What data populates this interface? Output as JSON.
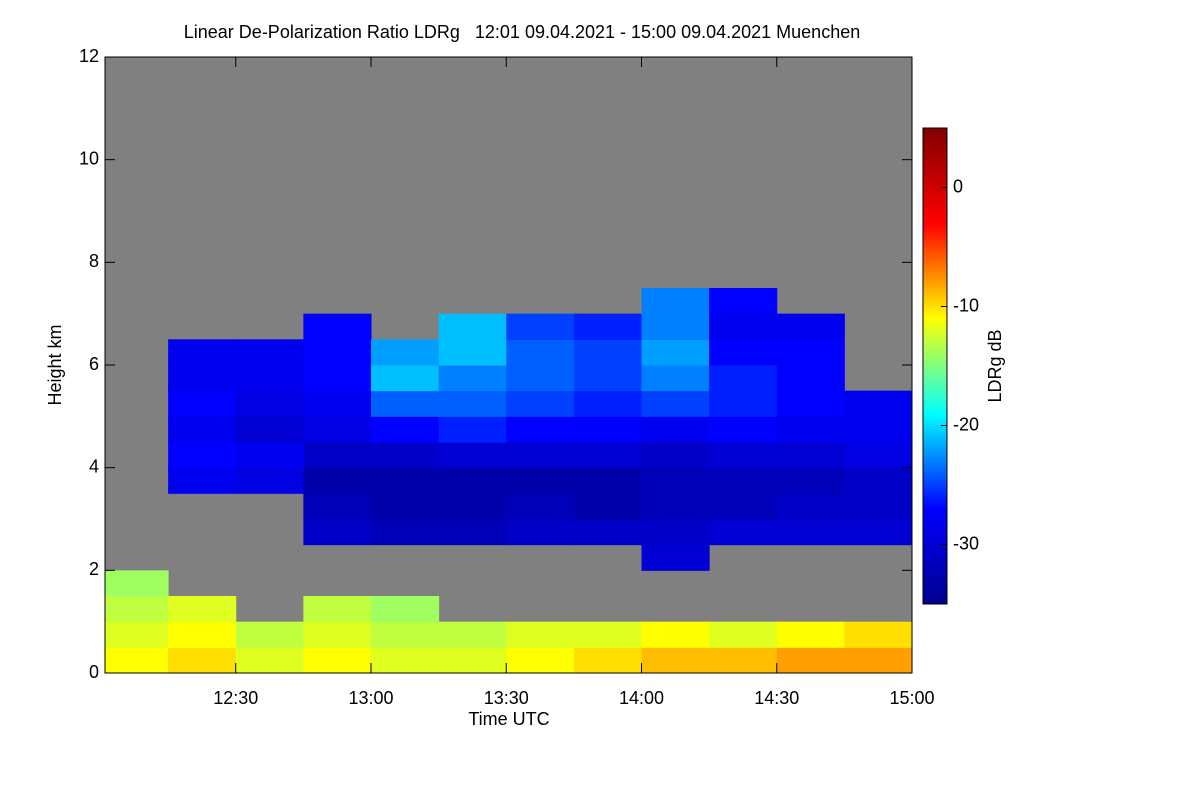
{
  "chart_data": {
    "type": "heatmap",
    "title": "Linear De-Polarization Ratio LDRg   12:01 09.04.2021 - 15:00 09.04.2021 Muenchen",
    "x_label": "Time UTC",
    "y_label": "Height km",
    "colorbar_label": "LDRg dB",
    "xlim": [
      721,
      900
    ],
    "xticks": [
      {
        "value": 750,
        "label": "12:30"
      },
      {
        "value": 780,
        "label": "13:00"
      },
      {
        "value": 810,
        "label": "13:30"
      },
      {
        "value": 840,
        "label": "14:00"
      },
      {
        "value": 870,
        "label": "14:30"
      },
      {
        "value": 900,
        "label": "15:00"
      }
    ],
    "ylim": [
      0,
      12
    ],
    "yticks": [
      0,
      2,
      4,
      6,
      8,
      10,
      12
    ],
    "zlim": [
      -35,
      5
    ],
    "zticks": [
      0,
      -10,
      -20,
      -30
    ],
    "colormap": [
      "#00008f",
      "#0000ff",
      "#00ffff",
      "#ffff00",
      "#ff0000",
      "#800000"
    ],
    "background": "#808080",
    "x_bins": [
      721,
      735,
      750,
      765,
      780,
      795,
      810,
      825,
      840,
      855,
      870,
      885,
      900
    ],
    "y_bins": [
      0,
      0.5,
      1,
      1.5,
      2,
      2.5,
      3,
      3.5,
      4,
      4.5,
      5,
      5.5,
      6,
      6.5,
      7,
      7.5,
      8
    ],
    "z": [
      [
        -11,
        -10,
        -12,
        -11,
        -12,
        -12,
        -11,
        -10,
        -9,
        -9,
        -8,
        -8
      ],
      [
        -12,
        -11,
        -13,
        -12,
        -13,
        -13,
        -12,
        -12,
        -11,
        -12,
        -11,
        -10
      ],
      [
        -13,
        -12,
        null,
        -13,
        -14,
        null,
        null,
        null,
        null,
        null,
        null,
        null
      ],
      [
        -14,
        null,
        null,
        null,
        null,
        null,
        null,
        null,
        null,
        null,
        null,
        null
      ],
      [
        null,
        null,
        null,
        null,
        null,
        null,
        null,
        null,
        -30,
        null,
        null,
        null
      ],
      [
        null,
        null,
        null,
        -31,
        -32,
        -32,
        -31,
        -31,
        -31,
        -30,
        -30,
        -30
      ],
      [
        null,
        null,
        null,
        -32,
        -33,
        -33,
        -32,
        -33,
        -32,
        -32,
        -31,
        -31
      ],
      [
        null,
        -28,
        -29,
        -33,
        -33,
        -33,
        -33,
        -33,
        -32,
        -32,
        -32,
        -31
      ],
      [
        null,
        -27,
        -28,
        -31,
        -31,
        -30,
        -30,
        -30,
        -31,
        -30,
        -30,
        -29
      ],
      [
        null,
        -28,
        -30,
        -29,
        -27,
        -26,
        -27,
        -27,
        -28,
        -27,
        -28,
        -28
      ],
      [
        null,
        -27,
        -29,
        -28,
        -24,
        -24,
        -25,
        -26,
        -25,
        -26,
        -27,
        -28
      ],
      [
        null,
        -28,
        -28,
        -27,
        -21,
        -23,
        -24,
        -25,
        -23,
        -26,
        -27,
        null
      ],
      [
        null,
        -28,
        -28,
        -27,
        -22,
        -21,
        -24,
        -25,
        -22,
        -27,
        -27,
        null
      ],
      [
        null,
        null,
        null,
        -27,
        null,
        -21,
        -25,
        -26,
        -23,
        -28,
        -28,
        null
      ],
      [
        null,
        null,
        null,
        null,
        null,
        null,
        null,
        null,
        -23,
        -27,
        null,
        null
      ],
      [
        null,
        null,
        null,
        null,
        null,
        null,
        null,
        null,
        null,
        null,
        null,
        null
      ]
    ]
  }
}
